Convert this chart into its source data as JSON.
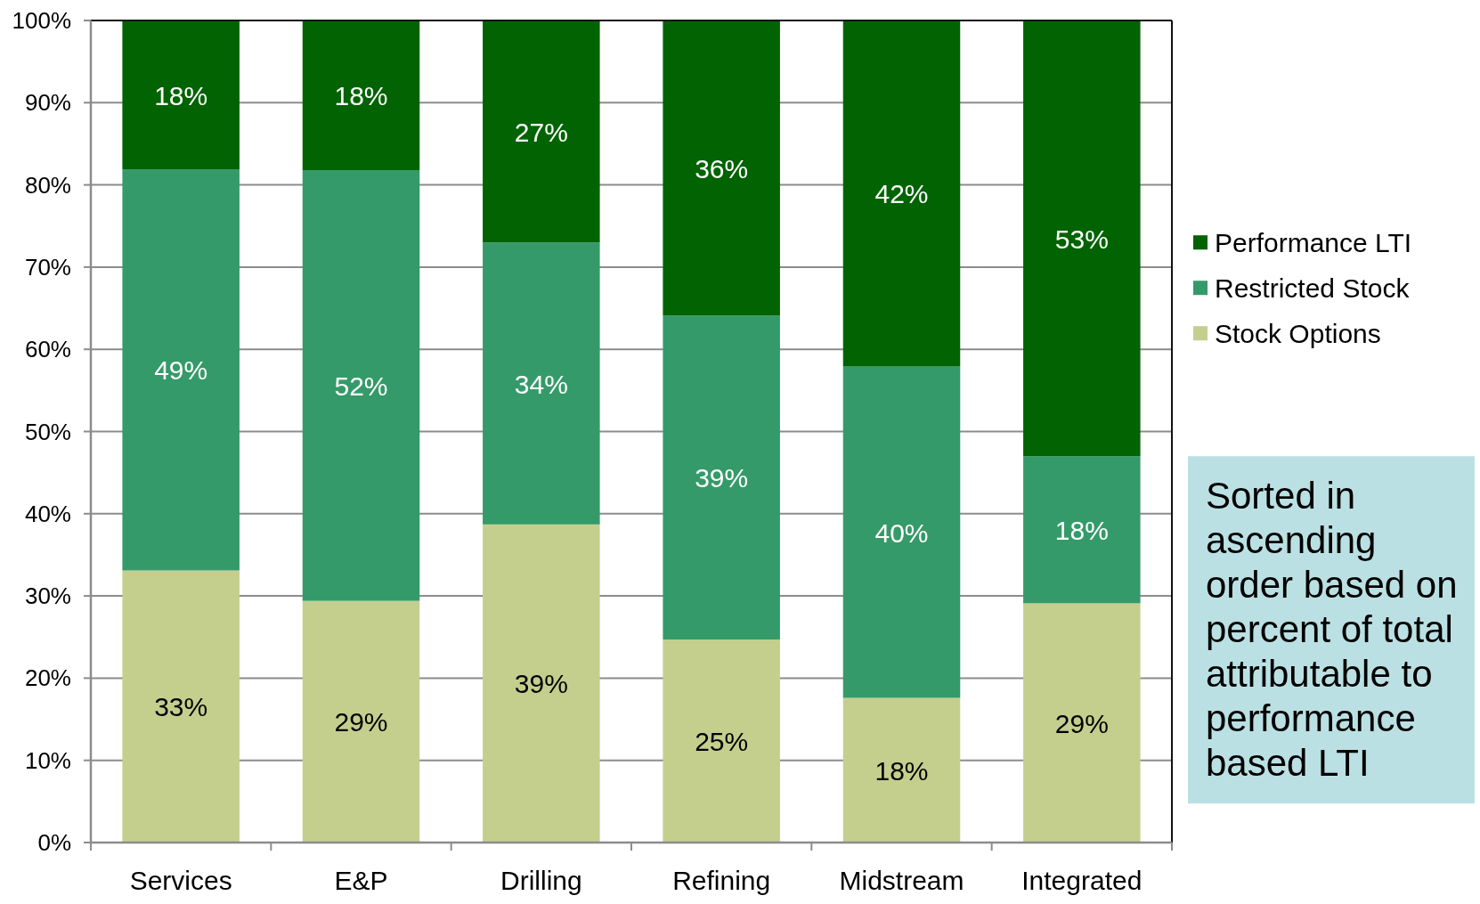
{
  "chart_data": {
    "type": "bar",
    "stacked": true,
    "categories": [
      "Services",
      "E&P",
      "Drilling",
      "Refining",
      "Midstream",
      "Integrated"
    ],
    "series": [
      {
        "name": "Stock Options",
        "color": "#c4cf8e",
        "values": [
          33.1,
          29.4,
          38.7,
          24.7,
          17.6,
          29.1
        ],
        "value_labels": [
          "33%",
          "29%",
          "39%",
          "25%",
          "18%",
          "29%"
        ]
      },
      {
        "name": "Restricted Stock",
        "color": "#359a69",
        "values": [
          48.8,
          52.4,
          34.3,
          39.4,
          40.3,
          17.9
        ],
        "value_labels": [
          "49%",
          "52%",
          "34%",
          "39%",
          "40%",
          "18%"
        ]
      },
      {
        "name": "Performance LTI",
        "color": "#026302",
        "values": [
          18.1,
          18.2,
          27.0,
          35.9,
          42.1,
          53.0
        ],
        "value_labels": [
          "18%",
          "18%",
          "27%",
          "36%",
          "42%",
          "53%"
        ]
      }
    ],
    "ylim": [
      0,
      100
    ],
    "yticks": [
      {
        "value": 0,
        "label": "0%"
      },
      {
        "value": 10,
        "label": "10%"
      },
      {
        "value": 20,
        "label": "20%"
      },
      {
        "value": 30,
        "label": "30%"
      },
      {
        "value": 40,
        "label": "40%"
      },
      {
        "value": 50,
        "label": "50%"
      },
      {
        "value": 60,
        "label": "60%"
      },
      {
        "value": 70,
        "label": "70%"
      },
      {
        "value": 80,
        "label": "80%"
      },
      {
        "value": 90,
        "label": "90%"
      },
      {
        "value": 100,
        "label": "100%"
      }
    ],
    "grid": "y",
    "legend": "right",
    "annotations": [
      "Sorted in ascending order based on percent of total attributable to performance based LTI"
    ]
  }
}
